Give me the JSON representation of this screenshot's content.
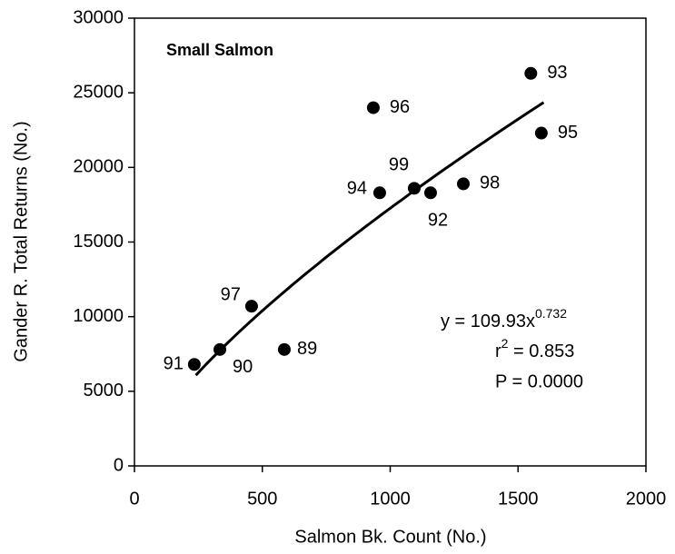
{
  "chart_data": {
    "type": "scatter",
    "title": "Small Salmon",
    "x_label": "Salmon Bk. Count (No.)",
    "y_label": "Gander R. Total Returns (No.)",
    "labels": [
      "89",
      "90",
      "91",
      "92",
      "93",
      "94",
      "95",
      "96",
      "97",
      "98",
      "99"
    ],
    "x": [
      586,
      334,
      234,
      1158,
      1550,
      959,
      1591,
      934,
      458,
      1286,
      1094
    ],
    "values": [
      7800,
      7800,
      6800,
      18300,
      26300,
      18300,
      22300,
      24000,
      10700,
      18900,
      18600
    ],
    "color": "#000000",
    "xlim": [
      0,
      2000
    ],
    "xticks": [
      0,
      500,
      1000,
      1500,
      2000
    ],
    "ylim": [
      0,
      30000
    ],
    "yticks": [
      0,
      5000,
      10000,
      15000,
      20000,
      25000,
      30000
    ],
    "fit": {
      "a": 109.93,
      "b": 0.732,
      "x_range": [
        240,
        1600
      ],
      "equation": "y = 109.93x",
      "exponent": "0.732",
      "r_symbol": "r",
      "r_power": "2",
      "r_value": " = 0.853",
      "p_value": "P = 0.0000"
    }
  }
}
